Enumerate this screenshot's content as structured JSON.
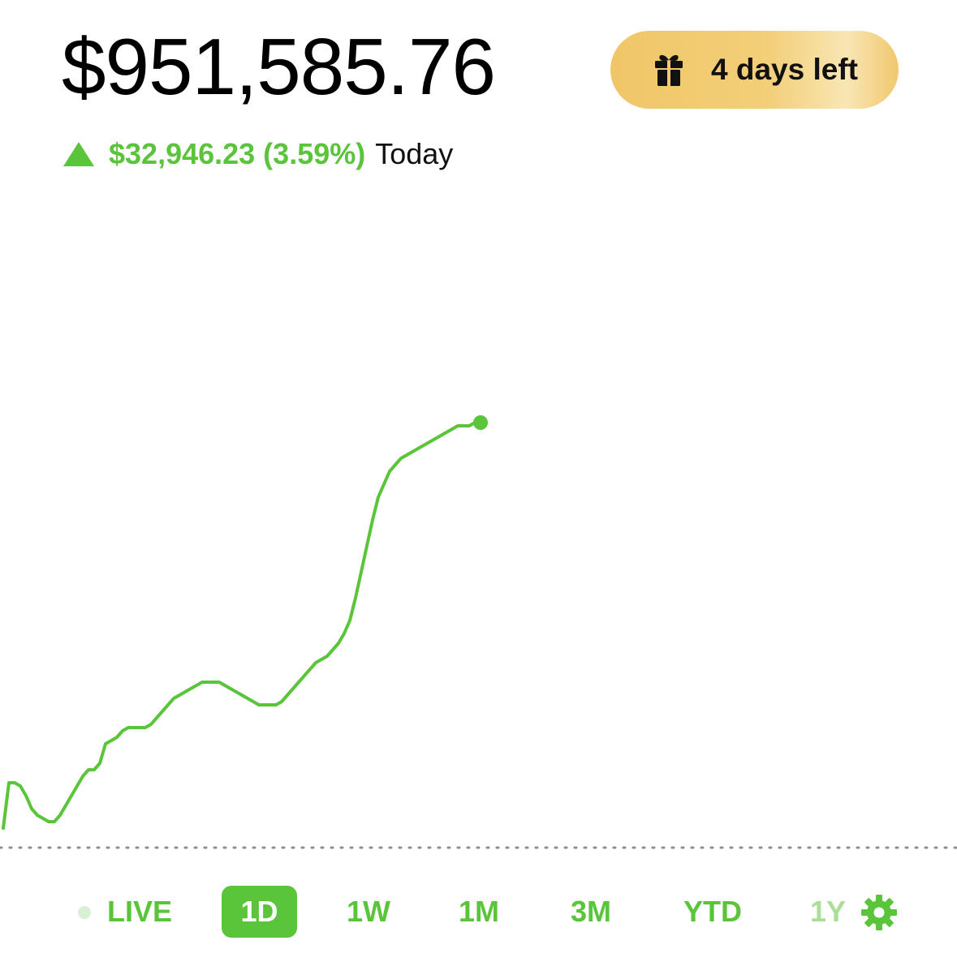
{
  "portfolio": {
    "value": "$951,585.76",
    "change_amount": "$32,946.23 (3.59%)",
    "change_period": "Today"
  },
  "gift": {
    "label": "4 days left",
    "icon": "gift-icon"
  },
  "chart_data": {
    "type": "line",
    "x_label": "",
    "y_label": "",
    "series": [
      {
        "color": "#5ac53b",
        "values": [
          0.62,
          0.76,
          0.76,
          0.75,
          0.72,
          0.68,
          0.66,
          0.65,
          0.64,
          0.64,
          0.66,
          0.69,
          0.72,
          0.75,
          0.78,
          0.8,
          0.8,
          0.82,
          0.88,
          0.89,
          0.9,
          0.92,
          0.93,
          0.93,
          0.93,
          0.93,
          0.94,
          0.96,
          0.98,
          1.0,
          1.02,
          1.03,
          1.04,
          1.05,
          1.06,
          1.07,
          1.07,
          1.07,
          1.07,
          1.06,
          1.05,
          1.04,
          1.03,
          1.02,
          1.01,
          1.0,
          1.0,
          1.0,
          1.0,
          1.01,
          1.03,
          1.05,
          1.07,
          1.09,
          1.11,
          1.13,
          1.14,
          1.15,
          1.17,
          1.19,
          1.22,
          1.26,
          1.33,
          1.41,
          1.49,
          1.57,
          1.64,
          1.68,
          1.72,
          1.74,
          1.76,
          1.77,
          1.78,
          1.79,
          1.8,
          1.81,
          1.82,
          1.83,
          1.84,
          1.85,
          1.86,
          1.86,
          1.86,
          1.87,
          1.87
        ]
      }
    ],
    "reference_line": "previous close",
    "grid": false,
    "legend": "none"
  },
  "ranges": {
    "live": "LIVE",
    "d1": "1D",
    "w1": "1W",
    "m1": "1M",
    "m3": "3M",
    "ytd": "YTD",
    "y1": "1Y",
    "selected": "1D"
  },
  "colors": {
    "accent": "#5ac53b",
    "gift_gold": "#f0c668"
  },
  "icons": {
    "settings": "gear-icon",
    "live": "live-dot-icon",
    "change": "up-triangle-icon"
  }
}
